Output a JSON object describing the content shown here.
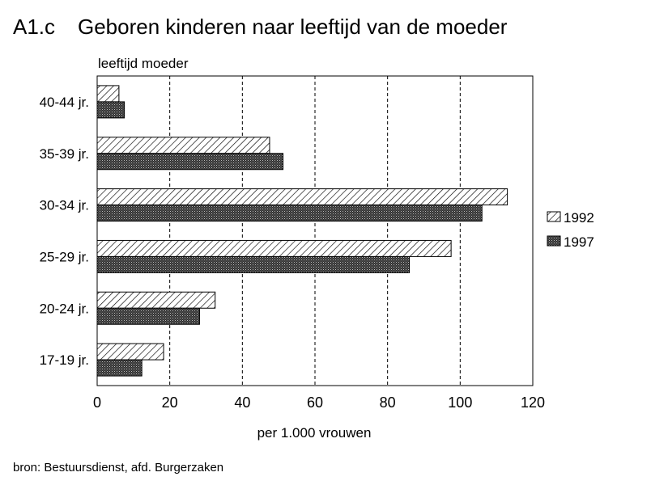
{
  "chart_data": {
    "type": "bar",
    "orientation": "horizontal",
    "title_code": "A1.c",
    "title": "Geboren kinderen naar leeftijd van de moeder",
    "ylabel": "leeftijd moeder",
    "xlabel": "per 1.000 vrouwen",
    "categories": [
      "40-44 jr.",
      "35-39 jr.",
      "30-34 jr.",
      "25-29 jr.",
      "20-24 jr.",
      "17-19 jr."
    ],
    "series": [
      {
        "name": "1992",
        "values": [
          6,
          47.5,
          113,
          97.5,
          32.5,
          18.3
        ],
        "pattern": "hatched"
      },
      {
        "name": "1997",
        "values": [
          7.5,
          51.2,
          106,
          86,
          28.2,
          12.3
        ],
        "pattern": "dotted-dark"
      }
    ],
    "xlim": [
      0,
      120
    ],
    "xticks": [
      0,
      20,
      40,
      60,
      80,
      100,
      120
    ],
    "grid": "vertical-dashed",
    "legend_position": "right",
    "source": "bron: Bestuursdienst, afd. Burgerzaken"
  }
}
